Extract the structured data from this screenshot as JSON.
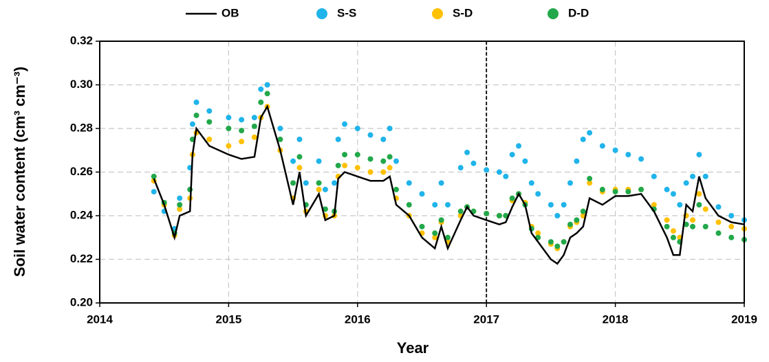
{
  "chart_data": {
    "type": "line",
    "x_label": "Year",
    "y_label": "Soil water content (cm³ cm⁻³)",
    "xlim": [
      2014,
      2019
    ],
    "xticks": [
      2014,
      2015,
      2016,
      2017,
      2018,
      2019
    ],
    "ylim": [
      0.2,
      0.32
    ],
    "yticks": [
      {
        "value": 0.2,
        "label": "0.20"
      },
      {
        "value": 0.22,
        "label": "0.22"
      },
      {
        "value": 0.24,
        "label": "0.24"
      },
      {
        "value": 0.26,
        "label": "0.26"
      },
      {
        "value": 0.28,
        "label": "0.28"
      },
      {
        "value": 0.3,
        "label": "0.30"
      },
      {
        "value": 0.32,
        "label": "0.32"
      }
    ],
    "grid": true,
    "vline": 2017,
    "x": [
      2014.42,
      2014.5,
      2014.58,
      2014.62,
      2014.7,
      2014.72,
      2014.75,
      2014.85,
      2015.0,
      2015.1,
      2015.2,
      2015.25,
      2015.3,
      2015.4,
      2015.5,
      2015.55,
      2015.6,
      2015.7,
      2015.75,
      2015.82,
      2015.85,
      2015.9,
      2016.0,
      2016.1,
      2016.2,
      2016.25,
      2016.3,
      2016.4,
      2016.5,
      2016.6,
      2016.65,
      2016.7,
      2016.8,
      2016.85,
      2016.9,
      2017.0,
      2017.1,
      2017.15,
      2017.2,
      2017.25,
      2017.3,
      2017.35,
      2017.4,
      2017.5,
      2017.55,
      2017.6,
      2017.65,
      2017.7,
      2017.75,
      2017.8,
      2017.9,
      2018.0,
      2018.1,
      2018.2,
      2018.3,
      2018.4,
      2018.45,
      2018.5,
      2018.55,
      2018.6,
      2018.65,
      2018.7,
      2018.8,
      2018.9,
      2019.0
    ],
    "series": [
      {
        "name": "OB",
        "color": "#000000",
        "style": "line",
        "values": [
          0.257,
          0.245,
          0.23,
          0.24,
          0.242,
          0.268,
          0.28,
          0.272,
          0.268,
          0.266,
          0.267,
          0.285,
          0.29,
          0.27,
          0.245,
          0.26,
          0.24,
          0.25,
          0.238,
          0.24,
          0.257,
          0.26,
          0.258,
          0.256,
          0.256,
          0.258,
          0.245,
          0.24,
          0.23,
          0.225,
          0.235,
          0.225,
          0.238,
          0.244,
          0.24,
          0.238,
          0.236,
          0.237,
          0.244,
          0.25,
          0.245,
          0.232,
          0.228,
          0.22,
          0.218,
          0.222,
          0.23,
          0.232,
          0.235,
          0.248,
          0.245,
          0.249,
          0.249,
          0.25,
          0.242,
          0.23,
          0.222,
          0.222,
          0.245,
          0.242,
          0.258,
          0.248,
          0.24,
          0.237,
          0.236
        ]
      },
      {
        "name": "S-S",
        "color": "#1fb4ea",
        "style": "markers",
        "values": [
          0.251,
          0.242,
          0.234,
          0.248,
          0.262,
          0.282,
          0.292,
          0.288,
          0.285,
          0.284,
          0.285,
          0.298,
          0.3,
          0.28,
          0.265,
          0.275,
          0.255,
          0.265,
          0.252,
          0.255,
          0.275,
          0.282,
          0.28,
          0.277,
          0.275,
          0.28,
          0.265,
          0.255,
          0.25,
          0.245,
          0.255,
          0.245,
          0.262,
          0.269,
          0.264,
          0.261,
          0.26,
          0.258,
          0.268,
          0.272,
          0.265,
          0.255,
          0.25,
          0.245,
          0.24,
          0.245,
          0.255,
          0.265,
          0.275,
          0.278,
          0.272,
          0.27,
          0.268,
          0.266,
          0.258,
          0.252,
          0.25,
          0.245,
          0.255,
          0.258,
          0.268,
          0.258,
          0.244,
          0.24,
          0.238
        ]
      },
      {
        "name": "S-D",
        "color": "#ffc000",
        "style": "markers",
        "values": [
          0.256,
          0.245,
          0.231,
          0.243,
          0.248,
          0.268,
          0.278,
          0.275,
          0.272,
          0.274,
          0.276,
          0.285,
          0.29,
          0.27,
          0.248,
          0.262,
          0.242,
          0.252,
          0.24,
          0.24,
          0.258,
          0.263,
          0.262,
          0.26,
          0.26,
          0.262,
          0.248,
          0.24,
          0.232,
          0.23,
          0.237,
          0.228,
          0.24,
          0.244,
          0.242,
          0.241,
          0.24,
          0.24,
          0.247,
          0.25,
          0.246,
          0.235,
          0.232,
          0.227,
          0.225,
          0.228,
          0.235,
          0.237,
          0.24,
          0.255,
          0.251,
          0.252,
          0.252,
          0.252,
          0.245,
          0.238,
          0.233,
          0.23,
          0.24,
          0.238,
          0.25,
          0.243,
          0.237,
          0.235,
          0.234
        ]
      },
      {
        "name": "D-D",
        "color": "#22a84a",
        "style": "markers",
        "values": [
          0.258,
          0.246,
          0.232,
          0.245,
          0.252,
          0.275,
          0.286,
          0.283,
          0.28,
          0.279,
          0.281,
          0.292,
          0.296,
          0.275,
          0.255,
          0.267,
          0.245,
          0.255,
          0.243,
          0.242,
          0.263,
          0.268,
          0.268,
          0.266,
          0.265,
          0.267,
          0.252,
          0.245,
          0.235,
          0.232,
          0.238,
          0.23,
          0.242,
          0.244,
          0.242,
          0.241,
          0.24,
          0.24,
          0.248,
          0.25,
          0.245,
          0.234,
          0.23,
          0.228,
          0.226,
          0.228,
          0.236,
          0.238,
          0.242,
          0.257,
          0.252,
          0.251,
          0.251,
          0.252,
          0.243,
          0.235,
          0.23,
          0.228,
          0.236,
          0.235,
          0.245,
          0.235,
          0.232,
          0.23,
          0.229
        ]
      }
    ]
  }
}
